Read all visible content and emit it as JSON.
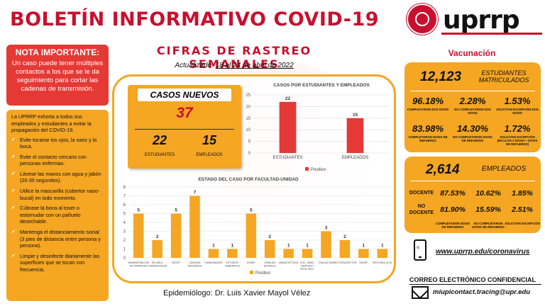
{
  "header": {
    "title": "BOLETÍN INFORMATIVO COVID-19",
    "brand": "uprrp"
  },
  "note": {
    "heading": "NOTA IMPORTANTE:",
    "text": "Un caso puede tener múltiples contactos a los que se le da seguimiento para cortar las cadenas de transmisión."
  },
  "tips": {
    "intro": "La UPRRP exhorta a todos sus empleados y estudiantes a evitar la propagación del COVID-19.",
    "items": [
      "Evite tocarse los ojos, la nariz y la boca.",
      "Evite el contacto cercano con personas enfermas.",
      "Lávese las manos con agua y jabón (20-30 segundos).",
      "Utilice la mascarilla (cobertor naso-bucal) en todo momento.",
      "Cúbrase la boca al toser o estornudar con un pañuelo desechable.",
      "Mantenga el distanciamiento social (3 pies de distancia entre persona y persona).",
      "Limpie y desinfecte diariamente las superficies que se tocan con frecuencia."
    ]
  },
  "main": {
    "subtitle": "CIFRAS DE RASTREO SEMANALES",
    "updated_label": "Actualizado:",
    "updated_date": "18 al 24 de abril de 2022",
    "epidemiologist": "Epidemiólogo: Dr. Luis Xavier Mayol Vélez"
  },
  "cases": {
    "label": "CASOS NUEVOS",
    "total": "37",
    "students": "22",
    "students_label": "ESTUDIANTES",
    "employees": "15",
    "employees_label": "EMPLEADOS"
  },
  "chart_data": [
    {
      "type": "bar",
      "title": "CASOS POR ESTUDIANTES Y EMPLEADOS",
      "categories": [
        "ESTUDIANTES",
        "EMPLEADOS"
      ],
      "series": [
        {
          "name": "Positivo",
          "values": [
            22,
            15
          ]
        }
      ],
      "ylim": [
        0,
        25
      ],
      "yticks": [
        0,
        5,
        10,
        15,
        20,
        25
      ],
      "color": "#e53935",
      "legend": "bottom",
      "grid": true
    },
    {
      "type": "bar",
      "title": "ESTADO DEL CASO POR FACULTAD-UNIDAD",
      "categories": [
        "ADMINISTRACION DE EMPRESAS",
        "ESCUELA COMUNICACION",
        "DECEP",
        "CIENCIAS NATURALES",
        "HUMANIDADES",
        "ESTUDIOS GENERALES",
        "DSSEP",
        "CIENCIAS SOCIALES",
        "ARQUITECTURA",
        "ESC. GRAD. CIENCIAS Y TECN. INFO.",
        "EDUCACION",
        "RECTORIA-RECTOR",
        "DEDEP",
        "RECTORIA-OCIO"
      ],
      "series": [
        {
          "name": "Positivo",
          "values": [
            5,
            2,
            5,
            7,
            1,
            1,
            5,
            2,
            1,
            1,
            3,
            2,
            1,
            1
          ]
        }
      ],
      "ylim": [
        0,
        8
      ],
      "yticks": [
        0,
        1,
        2,
        3,
        4,
        5,
        6,
        7,
        8
      ],
      "color": "#f5a623",
      "legend": "bottom",
      "grid": true
    }
  ],
  "vaccination": {
    "title": "Vacunación",
    "students": {
      "count": "12,123",
      "label": "ESTUDIANTES MATRICULADOS",
      "stats": [
        {
          "value": "96.18%",
          "caption": "COMPLETARON DOS DOSIS"
        },
        {
          "value": "2.28%",
          "caption": "NO COMPLETARON DOS DOSIS"
        },
        {
          "value": "1.53%",
          "caption": "SOLICITAN EXCEPCIÓN DOS DOSIS"
        },
        {
          "value": "83.98%",
          "caption": "COMPLETARON DOSIS DE REFUERZO"
        },
        {
          "value": "14.30%",
          "caption": "NO COMPLETARON DOSIS DE REFUERZO"
        },
        {
          "value": "1.72%",
          "caption": "SOLICITAN EXCEPCIÓN (INCLUYE 2 DOSIS + DOSIS DE REFUERZO)"
        }
      ]
    },
    "employees": {
      "count": "2,614",
      "label": "EMPLEADOS",
      "row1_label": "DOCENTE",
      "row1": [
        "87.53%",
        "10.62%",
        "1.85%"
      ],
      "row2_label": "NO DOCENTE",
      "row2": [
        "81.90%",
        "15.59%",
        "2.51%"
      ],
      "captions": [
        "COMPLETARON DOSIS DE REFUERZO",
        "NO COMPLETARON DOSIS DE REFUERZO",
        "SOLICITAN EXCEPCIÓN"
      ]
    }
  },
  "contact": {
    "website": "www.uprrp.edu/coronavirus",
    "mail_heading": "CORREO ELECTRÓNICO CONFIDENCIAL",
    "email": "miupicontact.tracing@upr.edu"
  }
}
